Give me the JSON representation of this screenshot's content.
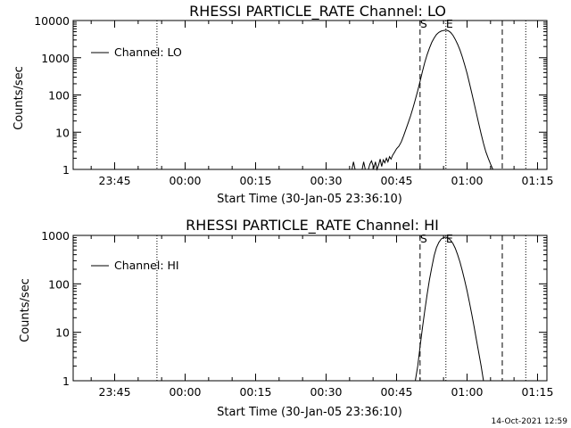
{
  "footer": {
    "timestamp": "14-Oct-2021 12:59"
  },
  "chart_data": [
    {
      "type": "line",
      "title": "RHESSI PARTICLE_RATE Channel: LO",
      "xlabel": "Start Time (30-Jan-05 23:36:10)",
      "ylabel": "Counts/sec",
      "yscale": "log",
      "ylim": [
        1,
        10000
      ],
      "xlim": [
        "23:36:10",
        "01:17:00"
      ],
      "xticks": [
        "23:45",
        "00:00",
        "00:15",
        "00:30",
        "00:45",
        "01:00",
        "01:15"
      ],
      "yticks": [
        "1",
        "10",
        "100",
        "1000",
        "10000"
      ],
      "legend": {
        "position": "top-left",
        "label": "Channel: LO"
      },
      "markers": [
        {
          "label": "",
          "time": "23:54:00",
          "style": "dotted"
        },
        {
          "label": "S",
          "time": "00:50:00",
          "style": "dashed"
        },
        {
          "label": "E",
          "time": "00:55:30",
          "style": "dotted"
        },
        {
          "label": "",
          "time": "01:07:30",
          "style": "dashed"
        },
        {
          "label": "",
          "time": "01:12:30",
          "style": "dotted"
        }
      ],
      "series": [
        {
          "name": "Channel: LO",
          "points": [
            [
              "00:35:30",
              1
            ],
            [
              "00:35:50",
              1.6
            ],
            [
              "00:36:10",
              1
            ],
            [
              "00:37:40",
              1
            ],
            [
              "00:38:00",
              1.6
            ],
            [
              "00:38:20",
              1
            ],
            [
              "00:39:00",
              1
            ],
            [
              "00:39:20",
              1.4
            ],
            [
              "00:39:40",
              1.7
            ],
            [
              "00:40:10",
              1.1
            ],
            [
              "00:40:30",
              1.6
            ],
            [
              "00:40:50",
              1
            ],
            [
              "00:41:10",
              1.3
            ],
            [
              "00:41:30",
              1.9
            ],
            [
              "00:41:50",
              1.2
            ],
            [
              "00:42:10",
              1.8
            ],
            [
              "00:42:30",
              1.5
            ],
            [
              "00:42:50",
              2.0
            ],
            [
              "00:43:10",
              1.6
            ],
            [
              "00:43:30",
              2.2
            ],
            [
              "00:43:50",
              1.9
            ],
            [
              "00:44:10",
              2.4
            ],
            [
              "00:44:30",
              2.8
            ],
            [
              "00:45:00",
              3.6
            ],
            [
              "00:45:30",
              4.2
            ],
            [
              "00:46:00",
              5.5
            ],
            [
              "00:46:30",
              8
            ],
            [
              "00:47:00",
              12
            ],
            [
              "00:47:30",
              18
            ],
            [
              "00:48:00",
              28
            ],
            [
              "00:48:30",
              45
            ],
            [
              "00:49:00",
              75
            ],
            [
              "00:49:30",
              130
            ],
            [
              "00:50:00",
              230
            ],
            [
              "00:50:30",
              420
            ],
            [
              "00:51:00",
              750
            ],
            [
              "00:51:30",
              1200
            ],
            [
              "00:52:00",
              1800
            ],
            [
              "00:52:30",
              2600
            ],
            [
              "00:53:00",
              3400
            ],
            [
              "00:53:30",
              4200
            ],
            [
              "00:54:00",
              4800
            ],
            [
              "00:54:30",
              5200
            ],
            [
              "00:55:00",
              5400
            ],
            [
              "00:55:30",
              5500
            ],
            [
              "00:56:00",
              5300
            ],
            [
              "00:56:30",
              4800
            ],
            [
              "00:57:00",
              4000
            ],
            [
              "00:57:30",
              3100
            ],
            [
              "00:58:00",
              2300
            ],
            [
              "00:58:30",
              1600
            ],
            [
              "00:59:00",
              1050
            ],
            [
              "00:59:30",
              650
            ],
            [
              "01:00:00",
              380
            ],
            [
              "01:00:30",
              210
            ],
            [
              "01:01:00",
              115
            ],
            [
              "01:01:30",
              60
            ],
            [
              "01:02:00",
              32
            ],
            [
              "01:02:30",
              17
            ],
            [
              "01:03:00",
              9
            ],
            [
              "01:03:30",
              5
            ],
            [
              "01:04:00",
              3
            ],
            [
              "01:04:30",
              2
            ],
            [
              "01:05:00",
              1.4
            ],
            [
              "01:05:30",
              1
            ]
          ]
        }
      ]
    },
    {
      "type": "line",
      "title": "RHESSI PARTICLE_RATE Channel: HI",
      "xlabel": "Start Time (30-Jan-05 23:36:10)",
      "ylabel": "Counts/sec",
      "yscale": "log",
      "ylim": [
        1,
        1000
      ],
      "xlim": [
        "23:36:10",
        "01:17:00"
      ],
      "xticks": [
        "23:45",
        "00:00",
        "00:15",
        "00:30",
        "00:45",
        "01:00",
        "01:15"
      ],
      "yticks": [
        "1",
        "10",
        "100",
        "1000"
      ],
      "legend": {
        "position": "top-left",
        "label": "Channel: HI"
      },
      "markers": [
        {
          "label": "",
          "time": "23:54:00",
          "style": "dotted"
        },
        {
          "label": "S",
          "time": "00:50:00",
          "style": "dashed"
        },
        {
          "label": "E",
          "time": "00:55:30",
          "style": "dotted"
        },
        {
          "label": "",
          "time": "01:07:30",
          "style": "dashed"
        },
        {
          "label": "",
          "time": "01:12:30",
          "style": "dotted"
        }
      ],
      "series": [
        {
          "name": "Channel: HI",
          "points": [
            [
              "00:49:00",
              1
            ],
            [
              "00:49:30",
              2
            ],
            [
              "00:50:00",
              5
            ],
            [
              "00:50:30",
              12
            ],
            [
              "00:51:00",
              28
            ],
            [
              "00:51:30",
              60
            ],
            [
              "00:52:00",
              120
            ],
            [
              "00:52:30",
              220
            ],
            [
              "00:53:00",
              380
            ],
            [
              "00:53:30",
              560
            ],
            [
              "00:54:00",
              720
            ],
            [
              "00:54:30",
              840
            ],
            [
              "00:55:00",
              900
            ],
            [
              "00:55:30",
              920
            ],
            [
              "00:56:00",
              880
            ],
            [
              "00:56:30",
              800
            ],
            [
              "00:57:00",
              680
            ],
            [
              "00:57:30",
              540
            ],
            [
              "00:58:00",
              400
            ],
            [
              "00:58:30",
              280
            ],
            [
              "00:59:00",
              185
            ],
            [
              "00:59:30",
              118
            ],
            [
              "01:00:00",
              72
            ],
            [
              "01:00:30",
              42
            ],
            [
              "01:01:00",
              24
            ],
            [
              "01:01:30",
              13
            ],
            [
              "01:02:00",
              7
            ],
            [
              "01:02:30",
              3.8
            ],
            [
              "01:03:00",
              2
            ],
            [
              "01:03:30",
              1
            ]
          ]
        }
      ]
    }
  ]
}
